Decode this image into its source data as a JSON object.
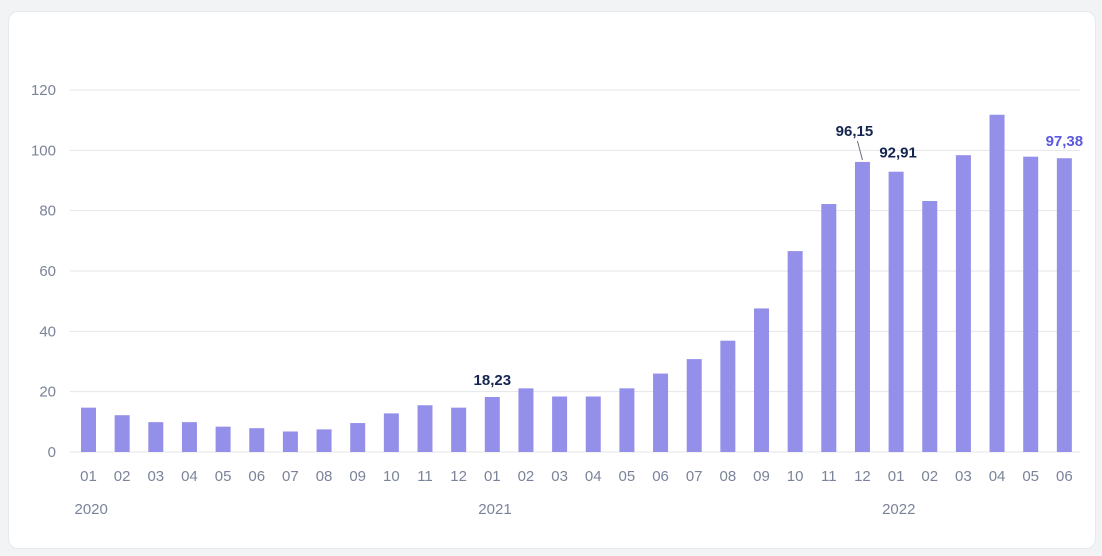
{
  "chart_data": {
    "type": "bar",
    "categories": [
      "01",
      "02",
      "03",
      "04",
      "05",
      "06",
      "07",
      "08",
      "09",
      "10",
      "11",
      "12",
      "01",
      "02",
      "03",
      "04",
      "05",
      "06",
      "07",
      "08",
      "09",
      "10",
      "11",
      "12",
      "01",
      "02",
      "03",
      "04",
      "05",
      "06"
    ],
    "years": [
      {
        "label": "2020",
        "start_index": 0
      },
      {
        "label": "2021",
        "start_index": 12
      },
      {
        "label": "2022",
        "start_index": 24
      }
    ],
    "values": [
      14.7,
      12.2,
      9.9,
      9.9,
      8.4,
      7.9,
      6.8,
      7.5,
      9.6,
      12.8,
      15.5,
      14.7,
      18.23,
      21.1,
      18.4,
      18.4,
      21.1,
      26.0,
      30.8,
      36.9,
      47.6,
      66.6,
      82.2,
      96.15,
      92.91,
      83.2,
      98.4,
      111.8,
      97.9,
      97.38
    ],
    "ylim": [
      0,
      120
    ],
    "yticks": [
      0,
      20,
      40,
      60,
      80,
      100,
      120
    ],
    "data_labels": [
      {
        "index": 12,
        "text": "18,23"
      },
      {
        "index": 23,
        "text": "96,15"
      },
      {
        "index": 24,
        "text": "92,91"
      },
      {
        "index": 29,
        "text": "97,38",
        "highlight": true
      }
    ],
    "grid": true,
    "colors": {
      "bar": "#9490ea",
      "label": "#14254f",
      "highlight": "#5b57e0",
      "grid": "#e4e6ea",
      "tick": "#7a8399"
    }
  }
}
